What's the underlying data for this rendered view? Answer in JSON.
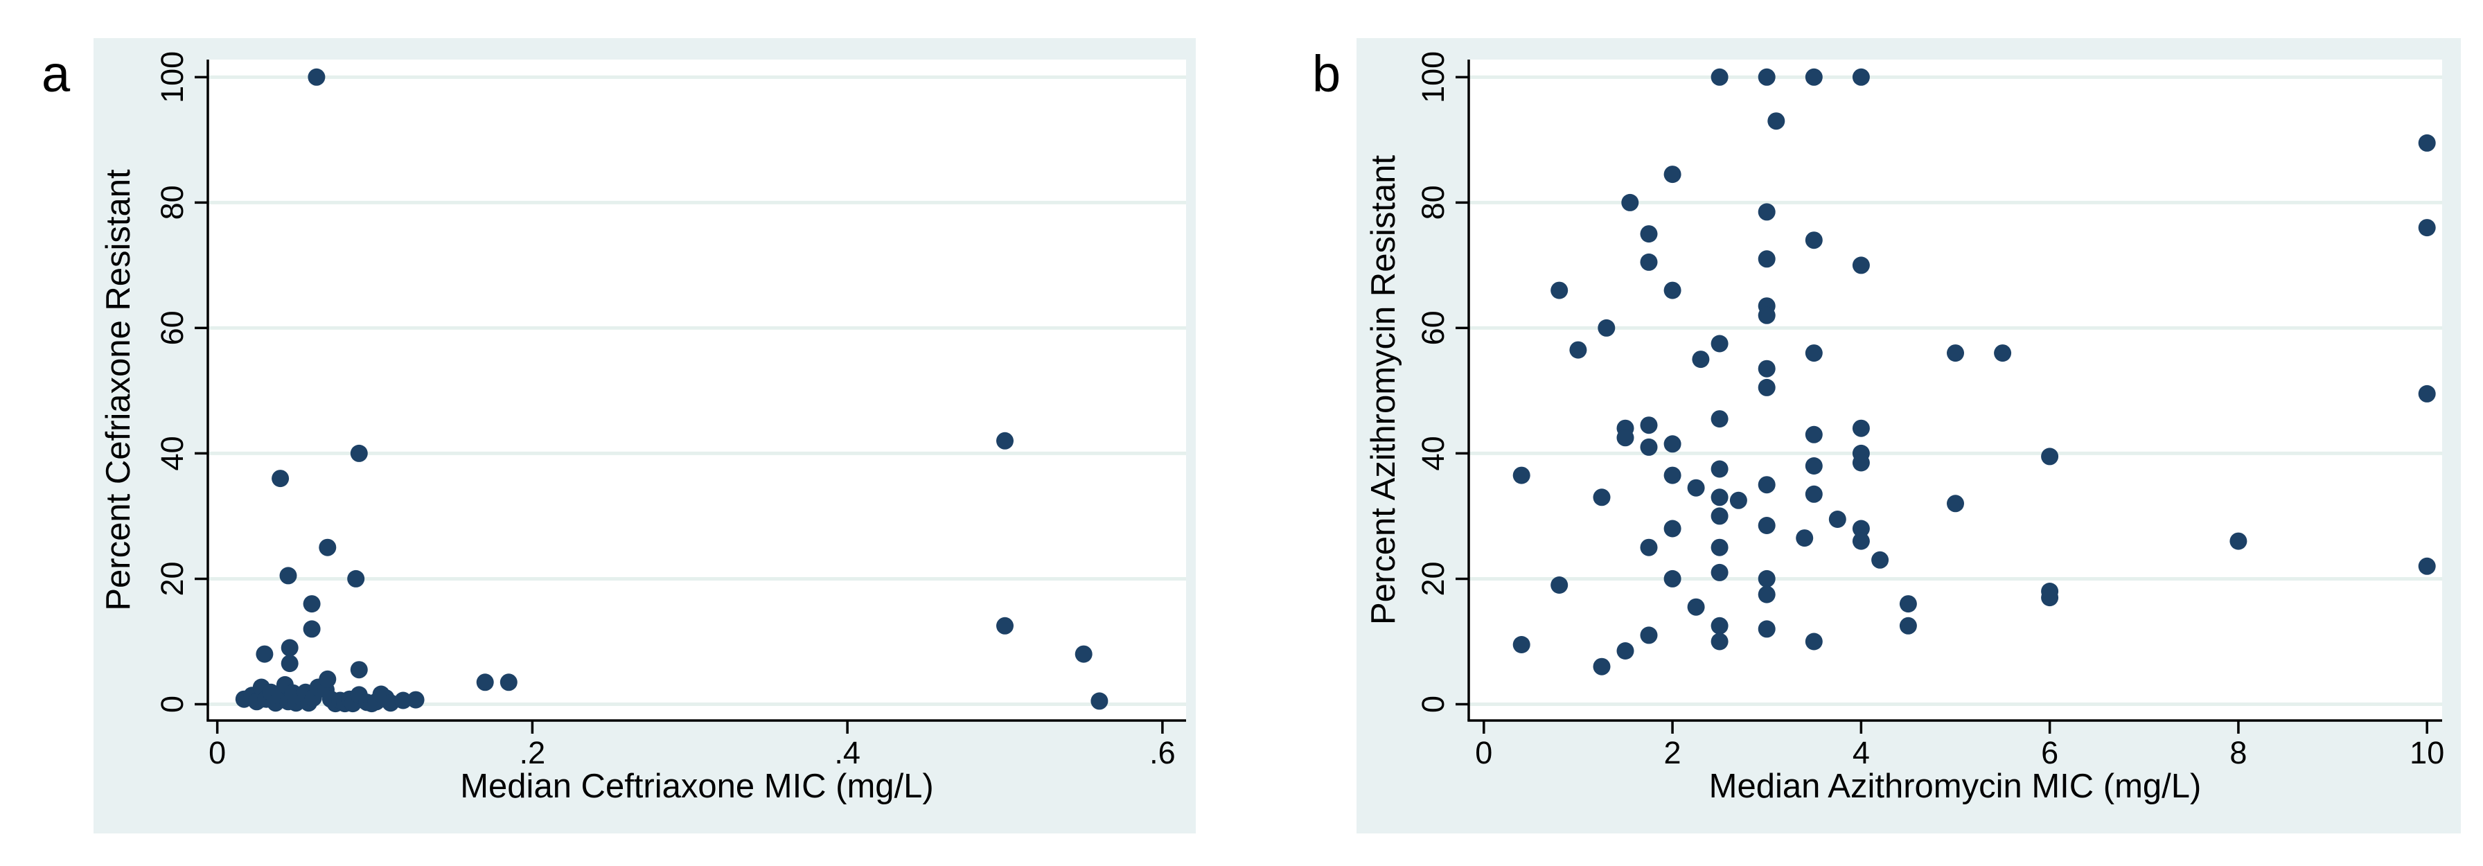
{
  "figure": {
    "colors": {
      "page_bg": "#ffffff",
      "panel_bg": "#e8f1f2",
      "plot_bg": "#ffffff",
      "grid": "#e5f0ed",
      "axis": "#000000",
      "marker": "#1d4166"
    }
  },
  "chart_data": [
    {
      "type": "scatter",
      "panel_label": "a",
      "xlabel": "Median Ceftriaxone MIC (mg/L)",
      "ylabel": "Percent Cefriaxone Resistant",
      "xlim": [
        -0.006,
        0.615
      ],
      "ylim": [
        -2.6,
        102.8
      ],
      "grid": "horizontal",
      "legend": "none",
      "x_ticks": [
        {
          "value": 0,
          "label": "0"
        },
        {
          "value": 0.2,
          "label": ".2"
        },
        {
          "value": 0.4,
          "label": ".4"
        },
        {
          "value": 0.6,
          "label": ".6"
        }
      ],
      "y_ticks": [
        {
          "value": 0,
          "label": "0"
        },
        {
          "value": 20,
          "label": "20"
        },
        {
          "value": 40,
          "label": "40"
        },
        {
          "value": 60,
          "label": "60"
        },
        {
          "value": 80,
          "label": "80"
        },
        {
          "value": 100,
          "label": "100"
        }
      ],
      "points": [
        [
          0.017,
          0.8
        ],
        [
          0.022,
          1.4
        ],
        [
          0.025,
          0.4
        ],
        [
          0.028,
          2.7
        ],
        [
          0.031,
          0.8
        ],
        [
          0.034,
          1.9
        ],
        [
          0.037,
          0.2
        ],
        [
          0.04,
          1.2
        ],
        [
          0.043,
          3.1
        ],
        [
          0.045,
          0.4
        ],
        [
          0.048,
          1.8
        ],
        [
          0.05,
          0.2
        ],
        [
          0.053,
          1.2
        ],
        [
          0.056,
          1.9
        ],
        [
          0.058,
          0.2
        ],
        [
          0.061,
          1.0
        ],
        [
          0.064,
          2.7
        ],
        [
          0.069,
          2.3
        ],
        [
          0.072,
          0.8
        ],
        [
          0.075,
          0.1
        ],
        [
          0.078,
          0.6
        ],
        [
          0.081,
          0.1
        ],
        [
          0.084,
          0.8
        ],
        [
          0.086,
          0.1
        ],
        [
          0.09,
          1.5
        ],
        [
          0.095,
          0.3
        ],
        [
          0.098,
          0.1
        ],
        [
          0.101,
          0.4
        ],
        [
          0.104,
          1.6
        ],
        [
          0.107,
          1.0
        ],
        [
          0.11,
          0.2
        ],
        [
          0.118,
          0.6
        ],
        [
          0.126,
          0.7
        ],
        [
          0.03,
          8
        ],
        [
          0.046,
          9
        ],
        [
          0.046,
          6.5
        ],
        [
          0.07,
          4
        ],
        [
          0.09,
          5.5
        ],
        [
          0.063,
          100
        ],
        [
          0.09,
          40
        ],
        [
          0.04,
          36
        ],
        [
          0.07,
          25
        ],
        [
          0.045,
          20.5
        ],
        [
          0.088,
          20
        ],
        [
          0.06,
          16
        ],
        [
          0.06,
          12
        ],
        [
          0.17,
          3.5
        ],
        [
          0.185,
          3.5
        ],
        [
          0.5,
          42
        ],
        [
          0.5,
          12.5
        ],
        [
          0.55,
          8
        ],
        [
          0.56,
          0.5
        ]
      ]
    },
    {
      "type": "scatter",
      "panel_label": "b",
      "xlabel": "Median Azithromycin MIC (mg/L)",
      "ylabel": "Percent Azithromycin Resistant",
      "xlim": [
        -0.16,
        10.16
      ],
      "ylim": [
        -2.6,
        102.8
      ],
      "grid": "horizontal",
      "legend": "none",
      "x_ticks": [
        {
          "value": 0,
          "label": "0"
        },
        {
          "value": 2,
          "label": "2"
        },
        {
          "value": 4,
          "label": "4"
        },
        {
          "value": 6,
          "label": "6"
        },
        {
          "value": 8,
          "label": "8"
        },
        {
          "value": 10,
          "label": "10"
        }
      ],
      "y_ticks": [
        {
          "value": 0,
          "label": "0"
        },
        {
          "value": 20,
          "label": "20"
        },
        {
          "value": 40,
          "label": "40"
        },
        {
          "value": 60,
          "label": "60"
        },
        {
          "value": 80,
          "label": "80"
        },
        {
          "value": 100,
          "label": "100"
        }
      ],
      "points": [
        [
          0.4,
          36.5
        ],
        [
          0.4,
          9.5
        ],
        [
          0.8,
          66
        ],
        [
          0.8,
          19
        ],
        [
          1,
          56.5
        ],
        [
          1.25,
          33
        ],
        [
          1.25,
          6
        ],
        [
          1.3,
          60
        ],
        [
          1.5,
          44
        ],
        [
          1.5,
          42.5
        ],
        [
          1.5,
          8.5
        ],
        [
          1.55,
          80
        ],
        [
          1.75,
          75
        ],
        [
          1.75,
          70.5
        ],
        [
          1.75,
          44.5
        ],
        [
          1.75,
          41
        ],
        [
          1.75,
          25
        ],
        [
          1.75,
          11
        ],
        [
          2,
          84.5
        ],
        [
          2,
          66
        ],
        [
          2,
          41.5
        ],
        [
          2,
          36.5
        ],
        [
          2,
          28
        ],
        [
          2,
          20
        ],
        [
          2.25,
          34.5
        ],
        [
          2.25,
          15.5
        ],
        [
          2.3,
          55
        ],
        [
          2.5,
          100
        ],
        [
          2.5,
          57.5
        ],
        [
          2.5,
          45.5
        ],
        [
          2.5,
          37.5
        ],
        [
          2.5,
          33
        ],
        [
          2.5,
          30
        ],
        [
          2.5,
          25
        ],
        [
          2.5,
          21
        ],
        [
          2.5,
          12.5
        ],
        [
          2.5,
          10
        ],
        [
          2.7,
          32.5
        ],
        [
          3,
          100
        ],
        [
          3,
          78.5
        ],
        [
          3,
          71
        ],
        [
          3,
          63.5
        ],
        [
          3,
          62
        ],
        [
          3,
          53.5
        ],
        [
          3,
          50.5
        ],
        [
          3,
          35
        ],
        [
          3,
          28.5
        ],
        [
          3,
          20
        ],
        [
          3,
          17.5
        ],
        [
          3,
          12
        ],
        [
          3.1,
          93
        ],
        [
          3.4,
          26.5
        ],
        [
          3.5,
          100
        ],
        [
          3.5,
          74
        ],
        [
          3.5,
          56
        ],
        [
          3.5,
          43
        ],
        [
          3.5,
          38
        ],
        [
          3.5,
          33.5
        ],
        [
          3.5,
          10
        ],
        [
          3.75,
          29.5
        ],
        [
          4,
          100
        ],
        [
          4,
          70
        ],
        [
          4,
          44
        ],
        [
          4,
          40
        ],
        [
          4,
          38.5
        ],
        [
          4,
          28
        ],
        [
          4,
          26
        ],
        [
          4.2,
          23
        ],
        [
          4.5,
          16
        ],
        [
          4.5,
          12.5
        ],
        [
          5,
          56
        ],
        [
          5,
          32
        ],
        [
          5.5,
          56
        ],
        [
          6,
          39.5
        ],
        [
          6,
          18
        ],
        [
          6,
          17
        ],
        [
          8,
          26
        ],
        [
          10,
          89.5
        ],
        [
          10,
          76
        ],
        [
          10,
          49.5
        ],
        [
          10,
          22
        ]
      ]
    }
  ]
}
